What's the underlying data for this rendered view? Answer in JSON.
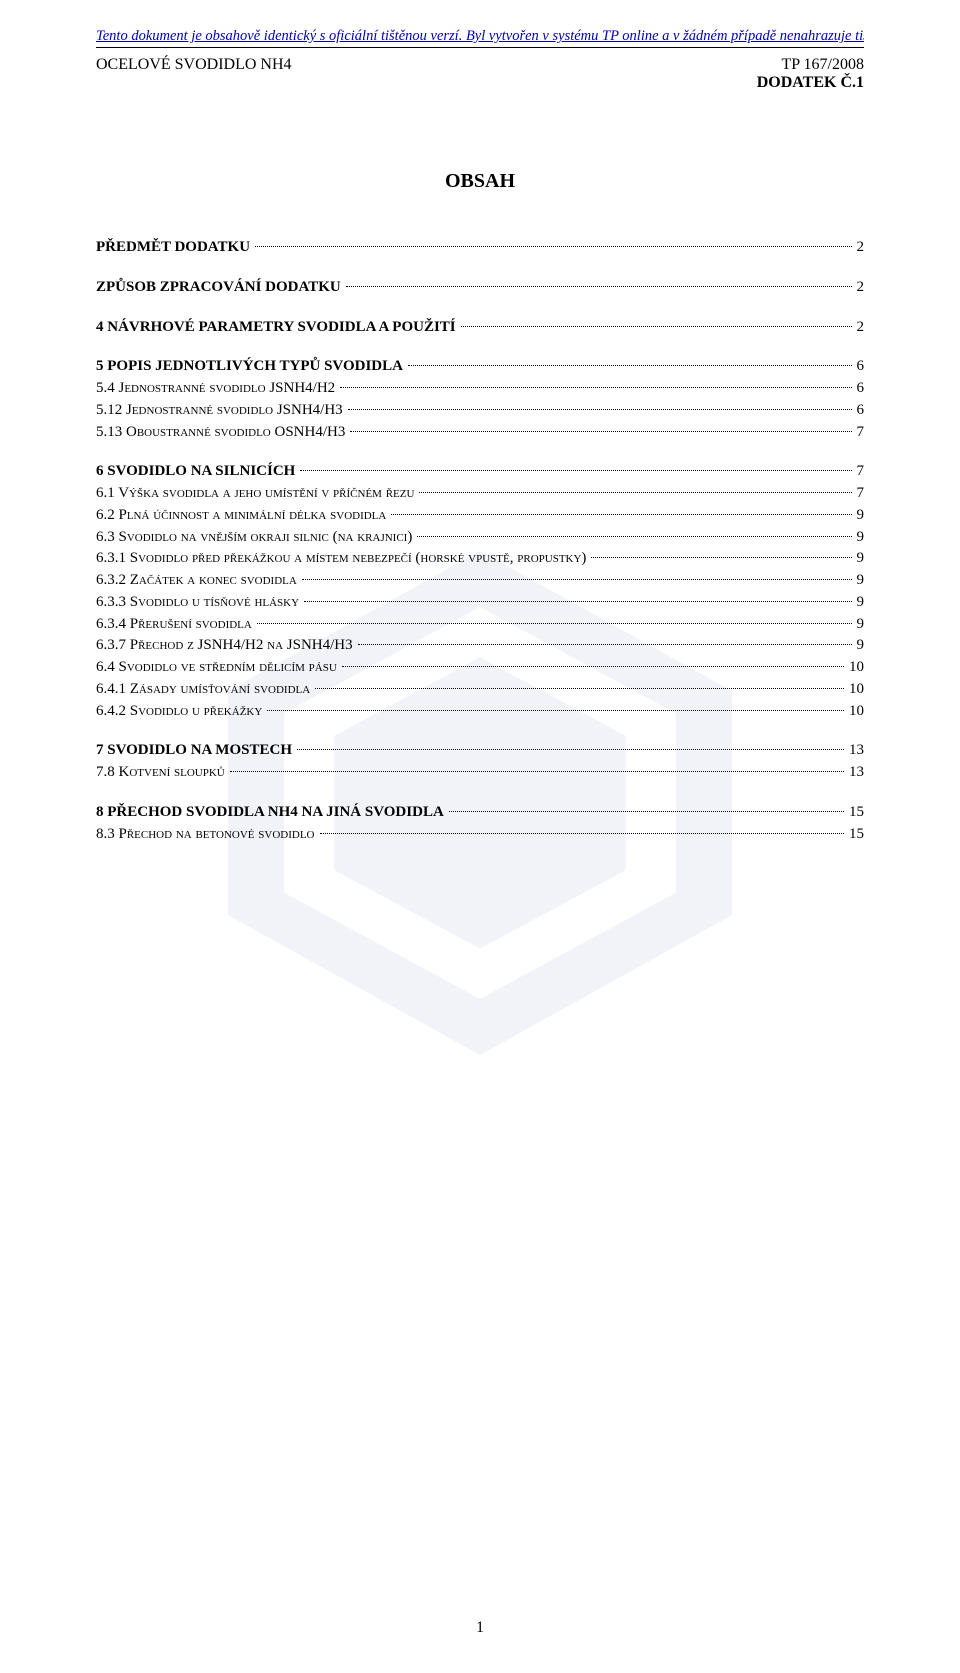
{
  "disclaimer": "Tento dokument je obsahově identický s oficiální tištěnou verzí. Byl vytvořen v systému TP online a v žádném případě nenahrazuje tištěnou verzi.",
  "header": {
    "left": "OCELOVÉ SVODIDLO NH4",
    "right_line1": "TP 167/2008",
    "right_line2": "DODATEK Č.1"
  },
  "title": "OBSAH",
  "page_number": "1",
  "toc": [
    {
      "label": "PŘEDMĚT DODATKU",
      "page": "2",
      "bold": true,
      "gap_after": true
    },
    {
      "label": "ZPŮSOB ZPRACOVÁNÍ DODATKU",
      "page": "2",
      "bold": true,
      "gap_after": true
    },
    {
      "label": "4  NÁVRHOVÉ PARAMETRY SVODIDLA A POUŽITÍ",
      "page": "2",
      "bold": true,
      "gap_after": true
    },
    {
      "label": "5  POPIS JEDNOTLIVÝCH TYPŮ SVODIDLA",
      "page": "6",
      "bold": true
    },
    {
      "label": "5.4  Jednostranné svodidlo JSNH4/H2",
      "page": "6",
      "caps": true
    },
    {
      "label": "5.12  Jednostranné svodidlo JSNH4/H3",
      "page": "6",
      "caps": true
    },
    {
      "label": "5.13  Oboustranné svodidlo OSNH4/H3",
      "page": "7",
      "caps": true,
      "gap_after": true
    },
    {
      "label": "6  SVODIDLO NA SILNICÍCH",
      "page": "7",
      "bold": true
    },
    {
      "label": "6.1  Výška svodidla a jeho umístění v příčném řezu",
      "page": "7",
      "caps": true
    },
    {
      "label": "6.2  Plná účinnost a minimální délka svodidla",
      "page": "9",
      "caps": true
    },
    {
      "label": "6.3  Svodidlo na vnějším okraji silnic (na krajnici)",
      "page": "9",
      "caps": true
    },
    {
      "label": "6.3.1  Svodidlo před překážkou a místem nebezpečí (horské vpustě, propustky)",
      "page": "9",
      "caps": true
    },
    {
      "label": "6.3.2  Začátek a konec svodidla",
      "page": "9",
      "caps": true
    },
    {
      "label": "6.3.3  Svodidlo u tísňové hlásky",
      "page": "9",
      "caps": true
    },
    {
      "label": "6.3.4  Přerušení svodidla",
      "page": "9",
      "caps": true
    },
    {
      "label": "6.3.7  Přechod z JSNH4/H2 na JSNH4/H3",
      "page": "9",
      "caps": true
    },
    {
      "label": "6.4  Svodidlo ve středním dělicím pásu",
      "page": "10",
      "caps": true
    },
    {
      "label": "6.4.1  Zásady umísťování svodidla",
      "page": "10",
      "caps": true
    },
    {
      "label": "6.4.2  Svodidlo u překážky",
      "page": "10",
      "caps": true,
      "gap_after": true
    },
    {
      "label": "7  SVODIDLO NA MOSTECH",
      "page": "13",
      "bold": true
    },
    {
      "label": "7.8  Kotvení sloupků",
      "page": "13",
      "caps": true,
      "gap_after": true
    },
    {
      "label": "8  PŘECHOD SVODIDLA NH4 NA JINÁ SVODIDLA",
      "page": "15",
      "bold": true
    },
    {
      "label": "8.3  Přechod na betonové svodidlo",
      "page": "15",
      "caps": true
    }
  ]
}
